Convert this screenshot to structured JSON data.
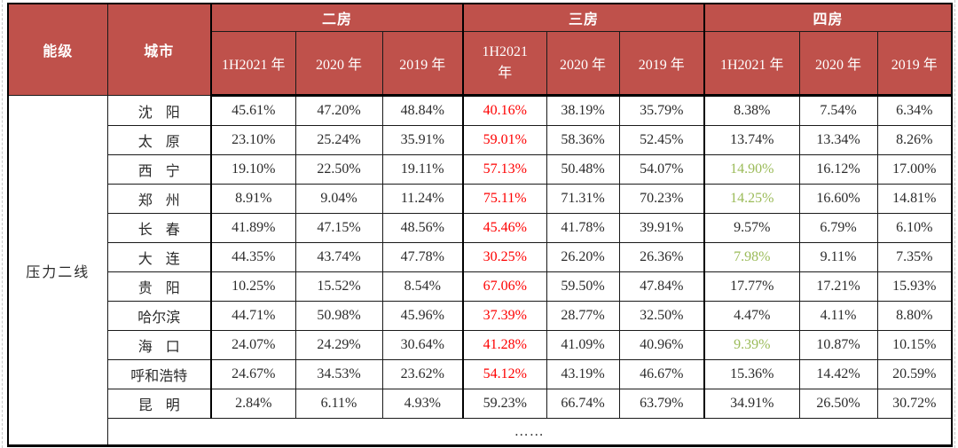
{
  "table": {
    "corner": {
      "tier_col": "能级",
      "city_col": "城市"
    },
    "groups": [
      {
        "label": "二房",
        "years": [
          "1H2021 年",
          "2020 年",
          "2019 年"
        ]
      },
      {
        "label": "三房",
        "years": [
          "1H2021 年",
          "2020 年",
          "2019 年"
        ]
      },
      {
        "label": "四房",
        "years": [
          "1H2021 年",
          "2020 年",
          "2019 年"
        ]
      }
    ],
    "tier_label": "压力二线",
    "rows": [
      {
        "city": "沈阳",
        "values": [
          "45.61%",
          "47.20%",
          "48.84%",
          "40.16%",
          "38.19%",
          "35.79%",
          "8.38%",
          "7.54%",
          "6.34%"
        ],
        "highlights": {
          "3": "red"
        }
      },
      {
        "city": "太原",
        "values": [
          "23.10%",
          "25.24%",
          "35.91%",
          "59.01%",
          "58.36%",
          "52.45%",
          "13.74%",
          "13.34%",
          "8.26%"
        ],
        "highlights": {
          "3": "red"
        }
      },
      {
        "city": "西宁",
        "values": [
          "19.10%",
          "22.50%",
          "19.11%",
          "57.13%",
          "50.48%",
          "54.07%",
          "14.90%",
          "16.12%",
          "17.00%"
        ],
        "highlights": {
          "3": "red",
          "6": "green"
        }
      },
      {
        "city": "郑州",
        "values": [
          "8.91%",
          "9.04%",
          "11.24%",
          "75.11%",
          "71.31%",
          "70.23%",
          "14.25%",
          "16.60%",
          "14.81%"
        ],
        "highlights": {
          "3": "red",
          "6": "green"
        }
      },
      {
        "city": "长春",
        "values": [
          "41.89%",
          "47.15%",
          "48.56%",
          "45.46%",
          "41.78%",
          "39.91%",
          "9.57%",
          "6.79%",
          "6.10%"
        ],
        "highlights": {
          "3": "red"
        }
      },
      {
        "city": "大连",
        "values": [
          "44.35%",
          "43.74%",
          "47.78%",
          "30.25%",
          "26.20%",
          "26.36%",
          "7.98%",
          "9.11%",
          "7.35%"
        ],
        "highlights": {
          "3": "red",
          "6": "green"
        }
      },
      {
        "city": "贵阳",
        "values": [
          "10.25%",
          "15.52%",
          "8.54%",
          "67.06%",
          "59.50%",
          "47.84%",
          "17.77%",
          "17.21%",
          "15.93%"
        ],
        "highlights": {
          "3": "red"
        }
      },
      {
        "city": "哈尔滨",
        "values": [
          "44.71%",
          "50.98%",
          "45.96%",
          "37.39%",
          "28.77%",
          "32.50%",
          "4.47%",
          "4.11%",
          "8.80%"
        ],
        "highlights": {
          "3": "red"
        }
      },
      {
        "city": "海口",
        "values": [
          "24.07%",
          "24.29%",
          "30.64%",
          "41.28%",
          "41.09%",
          "40.96%",
          "9.39%",
          "10.87%",
          "10.15%"
        ],
        "highlights": {
          "3": "red",
          "6": "green"
        }
      },
      {
        "city": "呼和浩特",
        "values": [
          "24.67%",
          "34.53%",
          "23.62%",
          "54.12%",
          "43.19%",
          "46.67%",
          "15.36%",
          "14.42%",
          "20.59%"
        ],
        "highlights": {
          "3": "red"
        }
      },
      {
        "city": "昆明",
        "values": [
          "2.84%",
          "6.11%",
          "4.93%",
          "59.23%",
          "66.74%",
          "63.79%",
          "34.91%",
          "26.50%",
          "30.72%"
        ],
        "highlights": {}
      }
    ],
    "ellipsis": "……",
    "colors": {
      "header_bg": "#BF514B",
      "header_text": "#FFFFFF",
      "highlight_red": "#FE0000",
      "highlight_green": "#9BBB59",
      "border": "#000000"
    }
  }
}
